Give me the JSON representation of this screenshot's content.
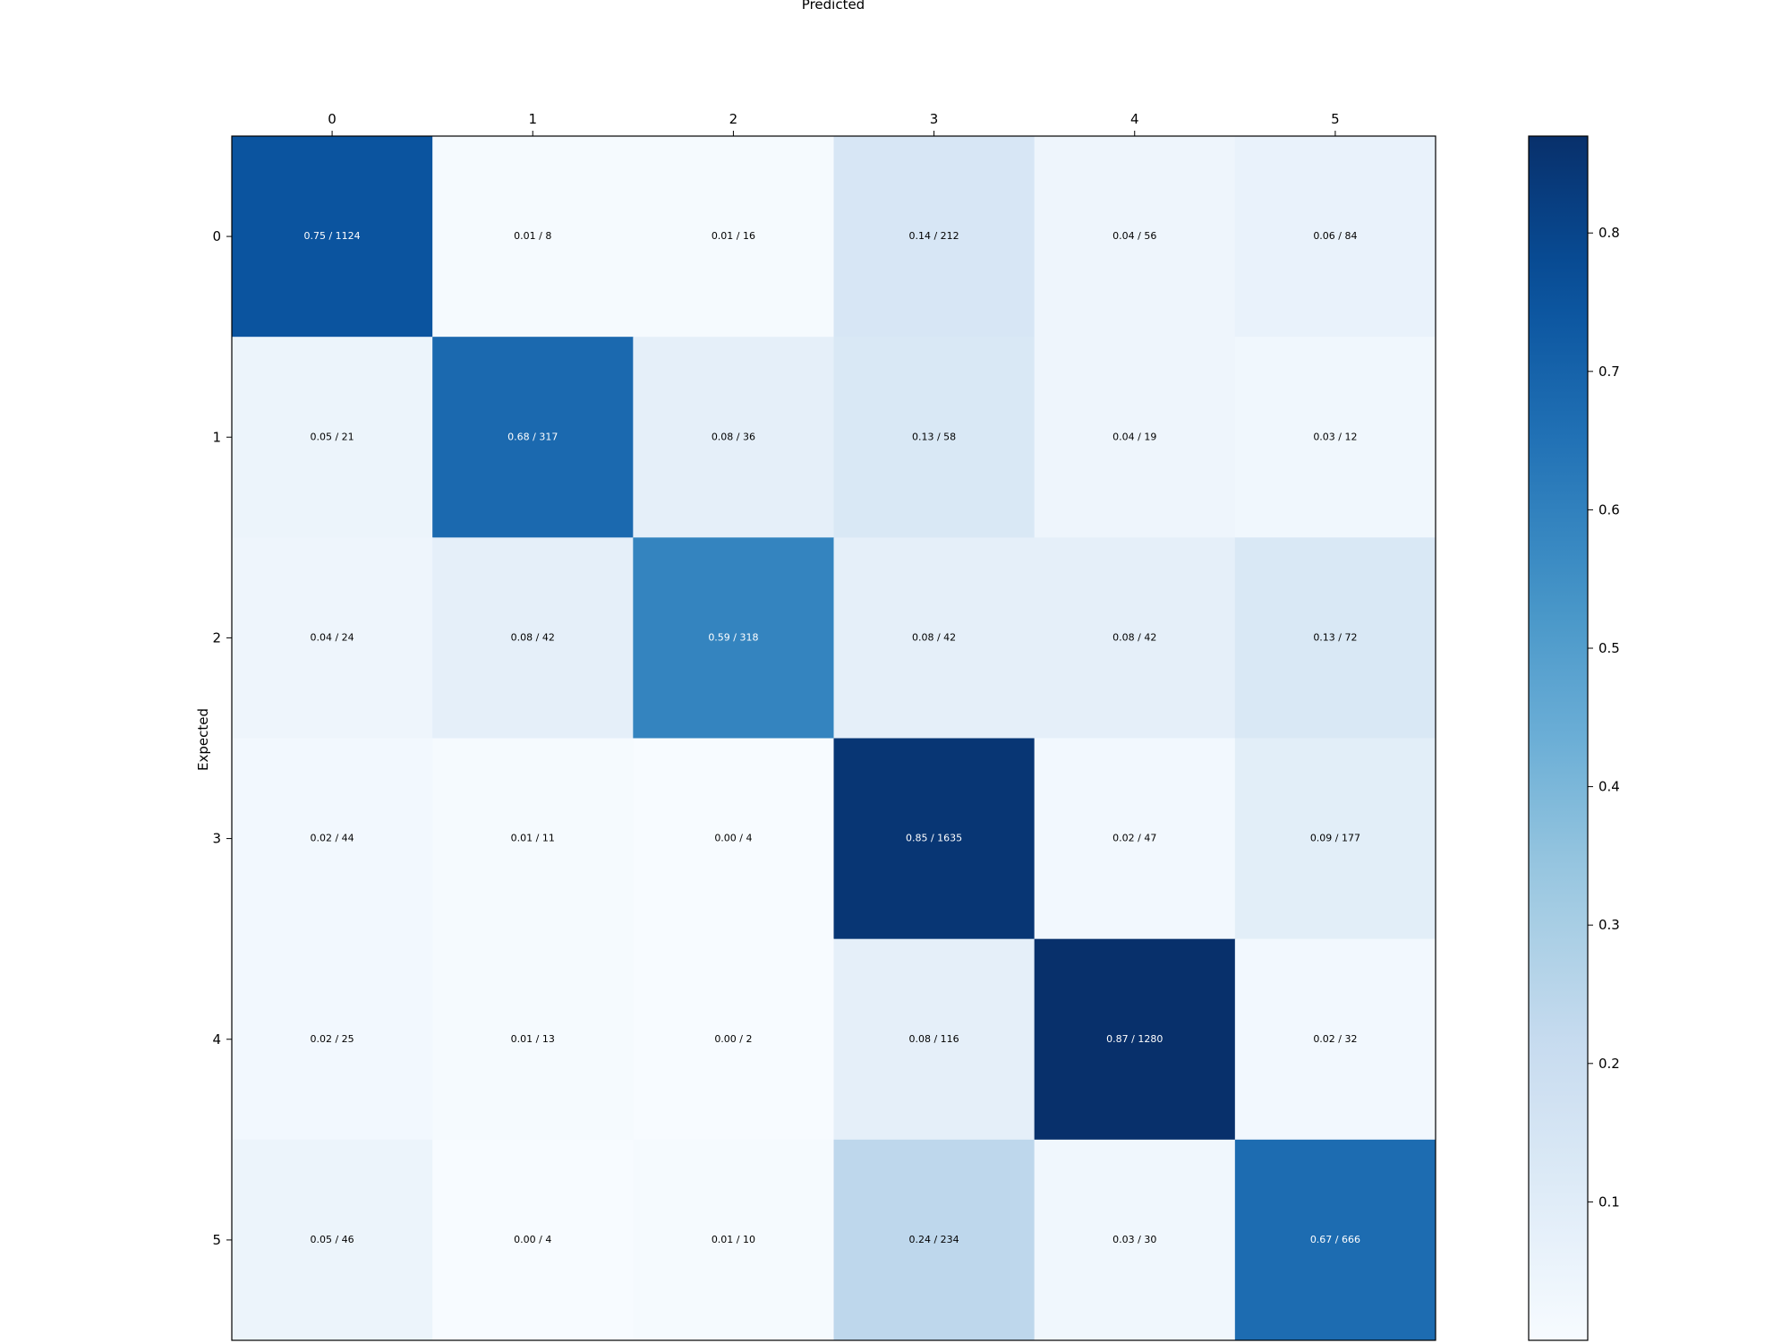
{
  "chart_data": {
    "type": "heatmap",
    "title": "Predicted",
    "xlabel": "Predicted",
    "ylabel": "Expected",
    "x_categories": [
      "0",
      "1",
      "2",
      "3",
      "4",
      "5"
    ],
    "y_categories": [
      "0",
      "1",
      "2",
      "3",
      "4",
      "5"
    ],
    "values": [
      [
        0.75,
        0.01,
        0.01,
        0.14,
        0.04,
        0.06
      ],
      [
        0.05,
        0.68,
        0.08,
        0.13,
        0.04,
        0.03
      ],
      [
        0.04,
        0.08,
        0.59,
        0.08,
        0.08,
        0.13
      ],
      [
        0.02,
        0.01,
        0.0,
        0.85,
        0.02,
        0.09
      ],
      [
        0.02,
        0.01,
        0.0,
        0.08,
        0.87,
        0.02
      ],
      [
        0.05,
        0.0,
        0.01,
        0.24,
        0.03,
        0.67
      ]
    ],
    "cell_labels": [
      [
        "0.75 / 1124",
        "0.01 / 8",
        "0.01 / 16",
        "0.14 / 212",
        "0.04 / 56",
        "0.06 / 84"
      ],
      [
        "0.05 / 21",
        "0.68 / 317",
        "0.08 / 36",
        "0.13 / 58",
        "0.04 / 19",
        "0.03 / 12"
      ],
      [
        "0.04 / 24",
        "0.08 / 42",
        "0.59 / 318",
        "0.08 / 42",
        "0.08 / 42",
        "0.13 / 72"
      ],
      [
        "0.02 / 44",
        "0.01 / 11",
        "0.00 / 4",
        "0.85 / 1635",
        "0.02 / 47",
        "0.09 / 177"
      ],
      [
        "0.02 / 25",
        "0.01 / 13",
        "0.00 / 2",
        "0.08 / 116",
        "0.87 / 1280",
        "0.02 / 32"
      ],
      [
        "0.05 / 46",
        "0.00 / 4",
        "0.01 / 10",
        "0.24 / 234",
        "0.03 / 30",
        "0.67 / 666"
      ]
    ],
    "colormap": "Blues",
    "colorbar": {
      "range": [
        0.0,
        0.87
      ],
      "ticks": [
        "0.1",
        "0.2",
        "0.3",
        "0.4",
        "0.5",
        "0.6",
        "0.7",
        "0.8"
      ]
    },
    "grid": false,
    "x_tick_position": "top",
    "colors": {
      "dark_text": "#000000",
      "light_text": "#ffffff"
    }
  }
}
